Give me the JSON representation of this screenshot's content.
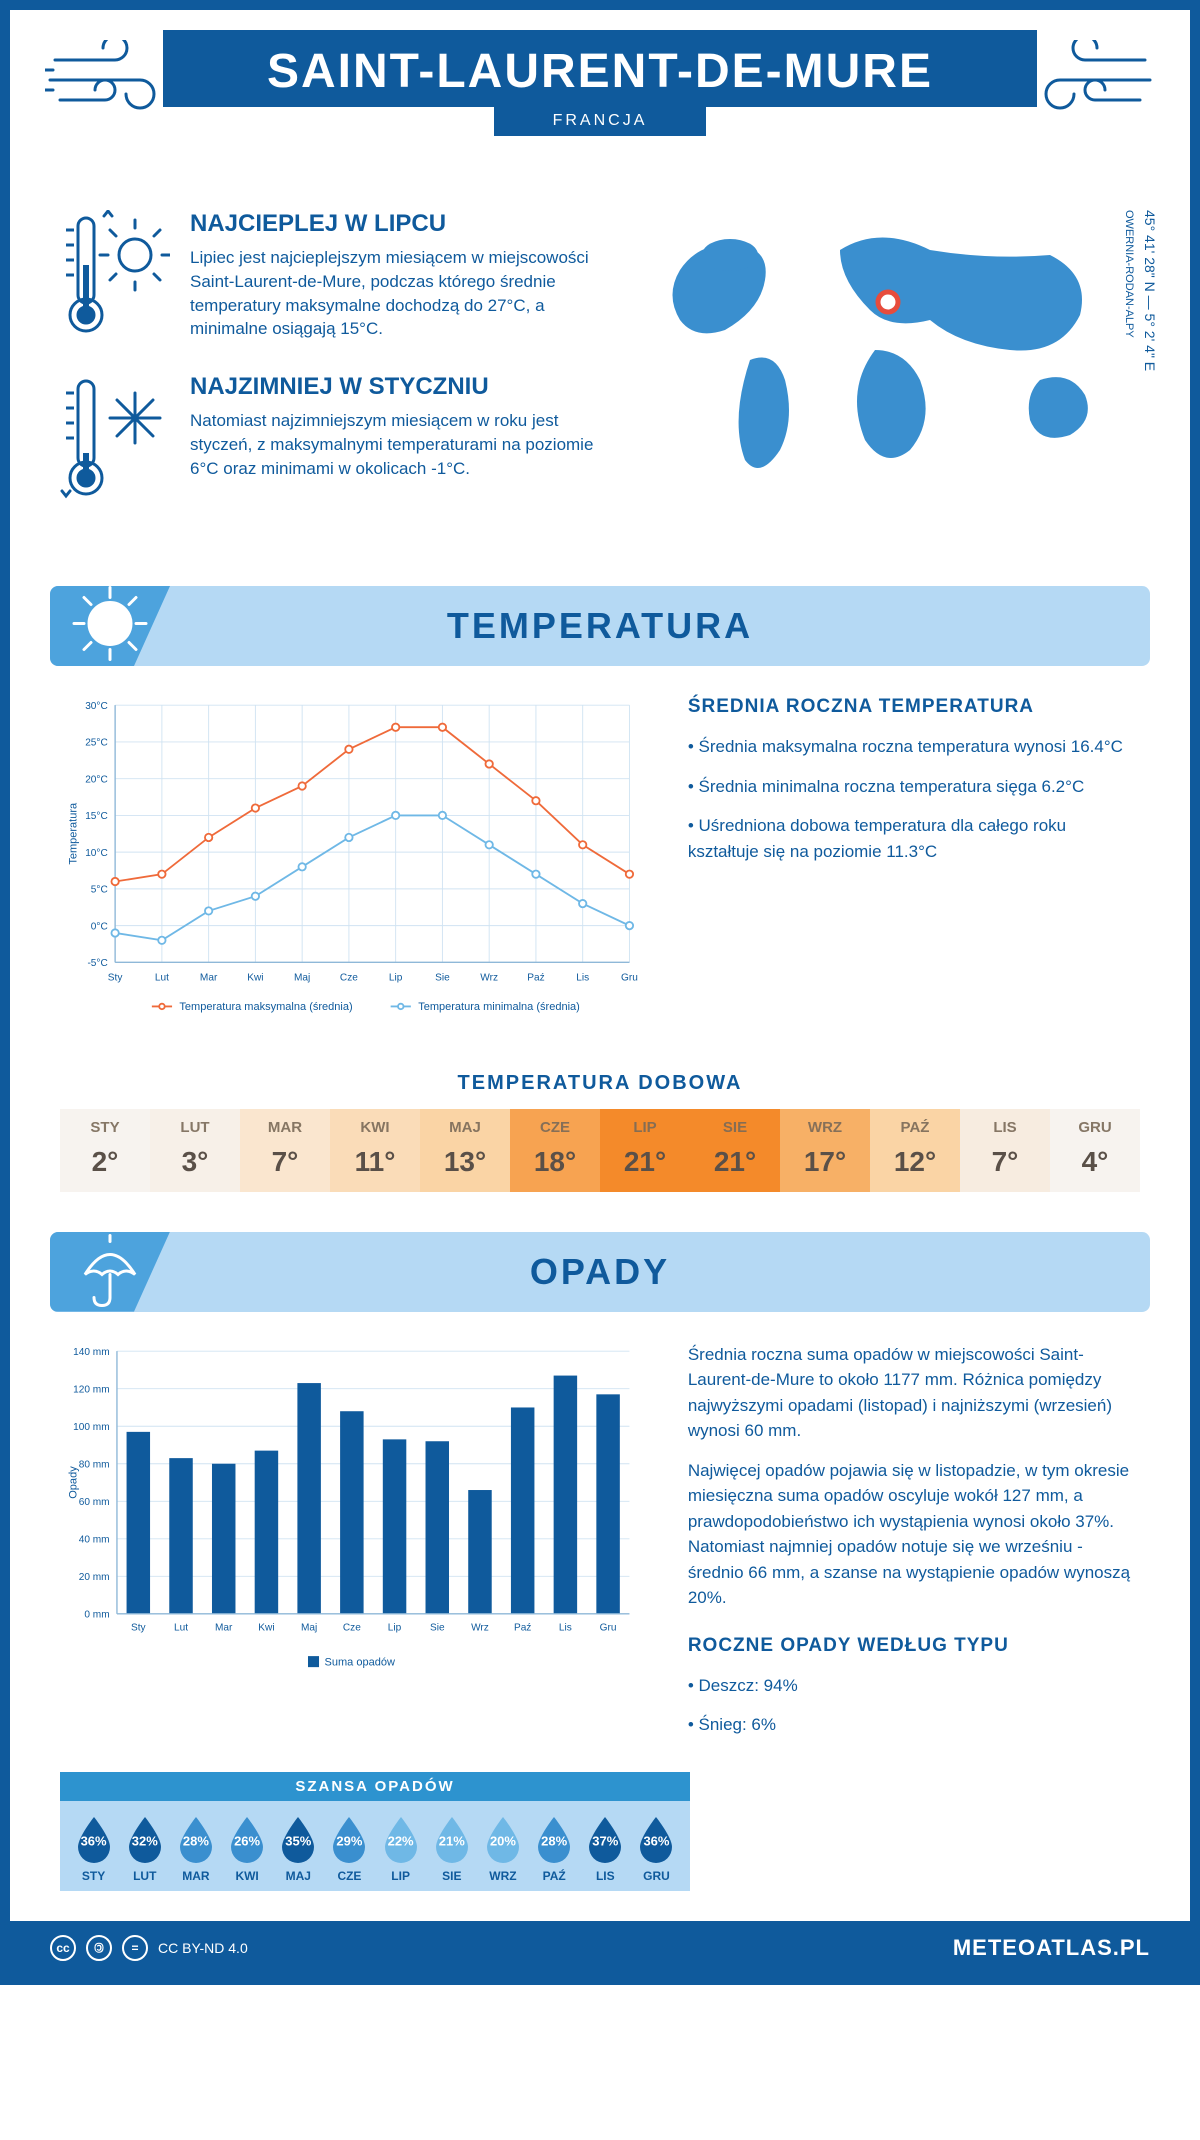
{
  "header": {
    "title": "SAINT-LAURENT-DE-MURE",
    "country": "FRANCJA"
  },
  "coords": {
    "lat": "45° 41' 28\" N",
    "sep": "—",
    "lon": "5° 2' 4\" E",
    "region": "OWERNIA-RODAN-ALPY"
  },
  "hot": {
    "title": "NAJCIEPLEJ W LIPCU",
    "text": "Lipiec jest najcieplejszym miesiącem w miejscowości Saint-Laurent-de-Mure, podczas którego średnie temperatury maksymalne dochodzą do 27°C, a minimalne osiągają 15°C."
  },
  "cold": {
    "title": "NAJZIMNIEJ W STYCZNIU",
    "text": "Natomiast najzimniejszym miesiącem w roku jest styczeń, z maksymalnymi temperaturami na poziomie 6°C oraz minimami w okolicach -1°C."
  },
  "temp_section": {
    "title": "TEMPERATURA"
  },
  "temp_chart": {
    "type": "line",
    "months_short": [
      "Sty",
      "Lut",
      "Mar",
      "Kwi",
      "Maj",
      "Cze",
      "Lip",
      "Sie",
      "Wrz",
      "Paź",
      "Lis",
      "Gru"
    ],
    "series": {
      "max": {
        "label": "Temperatura maksymalna (średnia)",
        "color": "#ef6a3a",
        "values": [
          6,
          7,
          12,
          16,
          19,
          24,
          27,
          27,
          22,
          17,
          11,
          7
        ]
      },
      "min": {
        "label": "Temperatura minimalna (średnia)",
        "color": "#6fb8e6",
        "values": [
          -1,
          -2,
          2,
          4,
          8,
          12,
          15,
          15,
          11,
          7,
          3,
          0
        ]
      }
    },
    "ylim": [
      -5,
      30
    ],
    "ytick_step": 5,
    "y_unit": "°C",
    "axis_label": "Temperatura",
    "grid_color": "#d0e3f2",
    "axis_color": "#8fb8d8",
    "line_width": 2,
    "marker": "circle",
    "marker_size": 4,
    "label_fontsize": 12,
    "tick_fontsize": 11
  },
  "temp_side": {
    "heading": "ŚREDNIA ROCZNA TEMPERATURA",
    "bullets": [
      "• Średnia maksymalna roczna temperatura wynosi 16.4°C",
      "• Średnia minimalna roczna temperatura sięga 6.2°C",
      "• Uśredniona dobowa temperatura dla całego roku kształtuje się na poziomie 11.3°C"
    ]
  },
  "daily": {
    "title": "TEMPERATURA DOBOWA",
    "months": [
      "STY",
      "LUT",
      "MAR",
      "KWI",
      "MAJ",
      "CZE",
      "LIP",
      "SIE",
      "WRZ",
      "PAŹ",
      "LIS",
      "GRU"
    ],
    "values": [
      "2°",
      "3°",
      "7°",
      "11°",
      "13°",
      "18°",
      "21°",
      "21°",
      "17°",
      "12°",
      "7°",
      "4°"
    ],
    "colors": [
      "#f7f3ef",
      "#f7f0e8",
      "#fae6cf",
      "#fadcb8",
      "#fad4a5",
      "#f7a351",
      "#f48a2a",
      "#f48a2a",
      "#f7b066",
      "#fad4a5",
      "#f7ece0",
      "#f7f3ef"
    ]
  },
  "precip_section": {
    "title": "OPADY"
  },
  "precip_chart": {
    "type": "bar",
    "months_short": [
      "Sty",
      "Lut",
      "Mar",
      "Kwi",
      "Maj",
      "Cze",
      "Lip",
      "Sie",
      "Wrz",
      "Paź",
      "Lis",
      "Gru"
    ],
    "values": [
      97,
      83,
      80,
      87,
      123,
      108,
      93,
      92,
      66,
      110,
      127,
      117
    ],
    "bar_color": "#0f5a9c",
    "ylim": [
      0,
      140
    ],
    "ytick_step": 20,
    "y_unit": " mm",
    "axis_label": "Opady",
    "legend_label": "Suma opadów",
    "grid_color": "#d0e3f2",
    "axis_color": "#8fb8d8",
    "bar_width": 0.55,
    "label_fontsize": 12,
    "tick_fontsize": 11
  },
  "precip_text": {
    "p1": "Średnia roczna suma opadów w miejscowości Saint-Laurent-de-Mure to około 1177 mm. Różnica pomiędzy najwyższymi opadami (listopad) i najniższymi (wrzesień) wynosi 60 mm.",
    "p2": "Najwięcej opadów pojawia się w listopadzie, w tym okresie miesięczna suma opadów oscyluje wokół 127 mm, a prawdopodobieństwo ich wystąpienia wynosi około 37%. Natomiast najmniej opadów notuje się we wrześniu - średnio 66 mm, a szanse na wystąpienie opadów wynoszą 20%."
  },
  "chance": {
    "title": "SZANSA OPADÓW",
    "months": [
      "STY",
      "LUT",
      "MAR",
      "KWI",
      "MAJ",
      "CZE",
      "LIP",
      "SIE",
      "WRZ",
      "PAŹ",
      "LIS",
      "GRU"
    ],
    "values": [
      "36%",
      "32%",
      "28%",
      "26%",
      "35%",
      "29%",
      "22%",
      "21%",
      "20%",
      "28%",
      "37%",
      "36%"
    ],
    "colors": [
      "#0f5a9c",
      "#0f5a9c",
      "#3a8fcf",
      "#3a8fcf",
      "#0f5a9c",
      "#3a8fcf",
      "#6fb8e6",
      "#6fb8e6",
      "#6fb8e6",
      "#3a8fcf",
      "#0f5a9c",
      "#0f5a9c"
    ]
  },
  "precip_type": {
    "heading": "ROCZNE OPADY WEDŁUG TYPU",
    "rain": "• Deszcz: 94%",
    "snow": "• Śnieg: 6%"
  },
  "footer": {
    "license": "CC BY-ND 4.0",
    "site": "METEOATLAS.PL"
  }
}
